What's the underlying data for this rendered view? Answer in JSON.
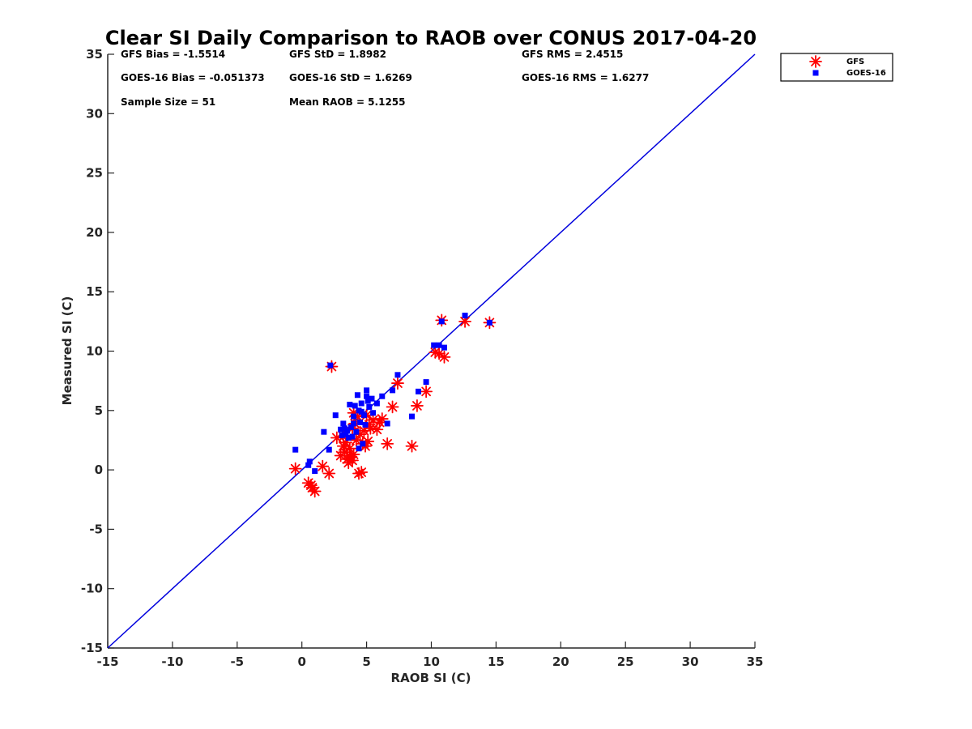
{
  "chart_data": {
    "type": "scatter",
    "title": "Clear SI Daily Comparison to RAOB over CONUS 2017-04-20",
    "xlabel": "RAOB SI (C)",
    "ylabel": "Measured SI (C)",
    "xlim": [
      -15,
      35
    ],
    "ylim": [
      -15,
      35
    ],
    "xticks": [
      -15,
      -10,
      -5,
      0,
      5,
      10,
      15,
      20,
      25,
      30,
      35
    ],
    "yticks": [
      -15,
      -10,
      -5,
      0,
      5,
      10,
      15,
      20,
      25,
      30,
      35
    ],
    "grid": false,
    "legend_position": "outside top-right",
    "reference_line": {
      "from": [
        -15,
        -15
      ],
      "to": [
        35,
        35
      ],
      "color": "#0000dd"
    },
    "stats": [
      {
        "text": "GFS Bias = -1.5514",
        "col": 0,
        "row": 0
      },
      {
        "text": "GFS StD = 1.8982",
        "col": 1,
        "row": 0
      },
      {
        "text": "GFS RMS = 2.4515",
        "col": 2,
        "row": 0
      },
      {
        "text": "GOES-16 Bias = -0.051373",
        "col": 0,
        "row": 1
      },
      {
        "text": "GOES-16 StD = 1.6269",
        "col": 1,
        "row": 1
      },
      {
        "text": "GOES-16 RMS = 1.6277",
        "col": 2,
        "row": 1
      },
      {
        "text": "Sample Size = 51",
        "col": 0,
        "row": 2
      },
      {
        "text": "Mean RAOB = 5.1255",
        "col": 1,
        "row": 2
      }
    ],
    "series": [
      {
        "name": "GFS",
        "marker": "asterisk",
        "color": "#ff0000",
        "points": [
          [
            -0.5,
            0.1
          ],
          [
            0.5,
            -1.1
          ],
          [
            0.7,
            -1.3
          ],
          [
            0.8,
            -1.5
          ],
          [
            1.0,
            -1.8
          ],
          [
            1.6,
            0.3
          ],
          [
            2.1,
            -0.3
          ],
          [
            2.3,
            8.7
          ],
          [
            2.7,
            2.7
          ],
          [
            3.0,
            1.2
          ],
          [
            3.2,
            2.0
          ],
          [
            3.3,
            1.5
          ],
          [
            3.5,
            0.9
          ],
          [
            3.6,
            0.6
          ],
          [
            3.8,
            1.1
          ],
          [
            3.9,
            0.8
          ],
          [
            4.0,
            1.3
          ],
          [
            4.1,
            3.9
          ],
          [
            4.2,
            2.5
          ],
          [
            4.3,
            4.5
          ],
          [
            4.4,
            -0.3
          ],
          [
            4.6,
            -0.2
          ],
          [
            4.7,
            2.2
          ],
          [
            4.8,
            3.3
          ],
          [
            5.0,
            4.6
          ],
          [
            5.1,
            2.4
          ],
          [
            5.2,
            3.8
          ],
          [
            5.5,
            4.2
          ],
          [
            5.8,
            3.4
          ],
          [
            6.2,
            4.3
          ],
          [
            6.6,
            2.2
          ],
          [
            7.0,
            5.3
          ],
          [
            7.4,
            7.3
          ],
          [
            8.5,
            2.0
          ],
          [
            8.9,
            5.4
          ],
          [
            9.6,
            6.6
          ],
          [
            10.3,
            9.9
          ],
          [
            10.6,
            9.8
          ],
          [
            10.8,
            12.6
          ],
          [
            11.0,
            9.5
          ],
          [
            12.6,
            12.5
          ],
          [
            14.5,
            12.4
          ],
          [
            3.2,
            2.8
          ],
          [
            3.7,
            1.8
          ],
          [
            4.5,
            3.0
          ],
          [
            5.3,
            3.5
          ],
          [
            3.4,
            2.3
          ],
          [
            4.9,
            2.0
          ],
          [
            3.9,
            3.5
          ],
          [
            6.0,
            4.0
          ],
          [
            4.0,
            4.8
          ]
        ]
      },
      {
        "name": "GOES-16",
        "marker": "square",
        "color": "#0000ff",
        "points": [
          [
            -0.5,
            1.7
          ],
          [
            0.5,
            0.4
          ],
          [
            0.6,
            0.7
          ],
          [
            1.0,
            -0.1
          ],
          [
            1.7,
            3.2
          ],
          [
            2.1,
            1.7
          ],
          [
            2.2,
            8.8
          ],
          [
            2.6,
            4.6
          ],
          [
            3.1,
            2.9
          ],
          [
            3.2,
            3.9
          ],
          [
            3.4,
            3.0
          ],
          [
            3.5,
            3.3
          ],
          [
            3.6,
            2.7
          ],
          [
            3.7,
            5.5
          ],
          [
            3.8,
            3.6
          ],
          [
            3.9,
            2.8
          ],
          [
            4.0,
            4.5
          ],
          [
            4.1,
            5.4
          ],
          [
            4.2,
            3.2
          ],
          [
            4.3,
            6.3
          ],
          [
            4.4,
            1.8
          ],
          [
            4.5,
            4.0
          ],
          [
            4.6,
            5.6
          ],
          [
            4.7,
            2.2
          ],
          [
            4.8,
            4.6
          ],
          [
            4.9,
            3.8
          ],
          [
            5.0,
            6.7
          ],
          [
            5.0,
            6.2
          ],
          [
            5.1,
            5.8
          ],
          [
            5.4,
            6.0
          ],
          [
            5.8,
            5.6
          ],
          [
            6.2,
            6.2
          ],
          [
            6.6,
            3.9
          ],
          [
            7.0,
            6.7
          ],
          [
            7.4,
            8.0
          ],
          [
            8.5,
            4.5
          ],
          [
            9.0,
            6.6
          ],
          [
            9.6,
            7.4
          ],
          [
            10.2,
            10.5
          ],
          [
            10.6,
            10.5
          ],
          [
            10.8,
            12.5
          ],
          [
            11.0,
            10.3
          ],
          [
            12.6,
            13.0
          ],
          [
            14.5,
            12.4
          ],
          [
            3.3,
            3.5
          ],
          [
            4.4,
            5.0
          ],
          [
            5.5,
            4.8
          ],
          [
            3.0,
            3.4
          ],
          [
            4.0,
            3.9
          ],
          [
            4.6,
            4.9
          ],
          [
            5.2,
            5.3
          ]
        ]
      }
    ]
  }
}
